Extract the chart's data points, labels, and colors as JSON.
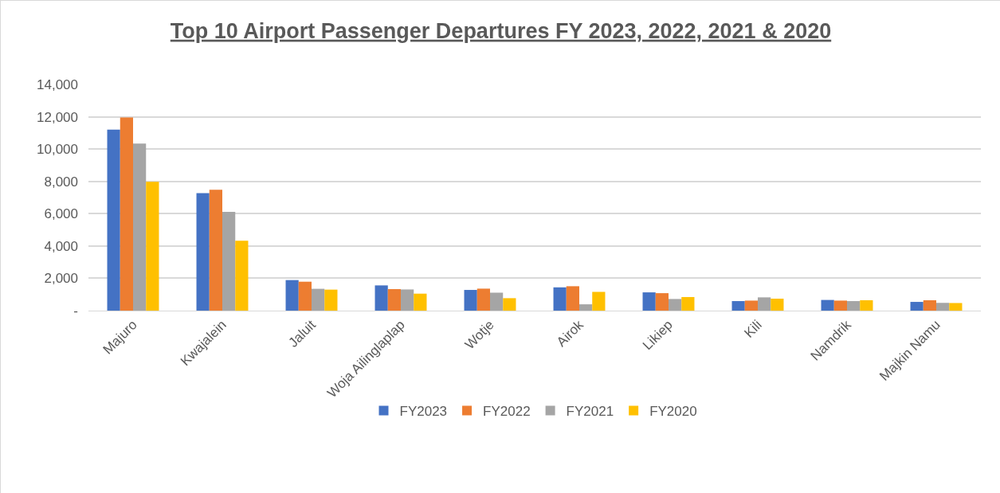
{
  "chart_data": {
    "type": "bar",
    "title": "Top 10 Airport Passenger Departures FY 2023, 2022, 2021 & 2020",
    "categories": [
      "Majuro",
      "Kwajalein",
      "Jaluit",
      "Woja Ailinglaplap",
      "Wotje",
      "Airok",
      "Likiep",
      "Kili",
      "Namdrik",
      "Majkin Namu"
    ],
    "series": [
      {
        "name": "FY2023",
        "color": "#4472c4",
        "values": [
          11200,
          7270,
          1890,
          1560,
          1280,
          1440,
          1130,
          590,
          660,
          540
        ]
      },
      {
        "name": "FY2022",
        "color": "#ed7d31",
        "values": [
          11950,
          7480,
          1790,
          1330,
          1360,
          1510,
          1080,
          620,
          620,
          640
        ]
      },
      {
        "name": "FY2021",
        "color": "#a5a5a5",
        "values": [
          10340,
          6110,
          1350,
          1310,
          1110,
          390,
          720,
          820,
          590,
          480
        ]
      },
      {
        "name": "FY2020",
        "color": "#ffc000",
        "values": [
          7970,
          4330,
          1300,
          1050,
          770,
          1160,
          840,
          740,
          640,
          470
        ]
      }
    ],
    "ylim": [
      0,
      14000
    ],
    "yticks": [
      {
        "value": 0,
        "label": "-"
      },
      {
        "value": 2000,
        "label": "2,000"
      },
      {
        "value": 4000,
        "label": "4,000"
      },
      {
        "value": 6000,
        "label": "6,000"
      },
      {
        "value": 8000,
        "label": "8,000"
      },
      {
        "value": 10000,
        "label": "10,000"
      },
      {
        "value": 12000,
        "label": "12,000"
      },
      {
        "value": 14000,
        "label": "14,000"
      }
    ],
    "grid": "y",
    "legend": "bottom"
  }
}
